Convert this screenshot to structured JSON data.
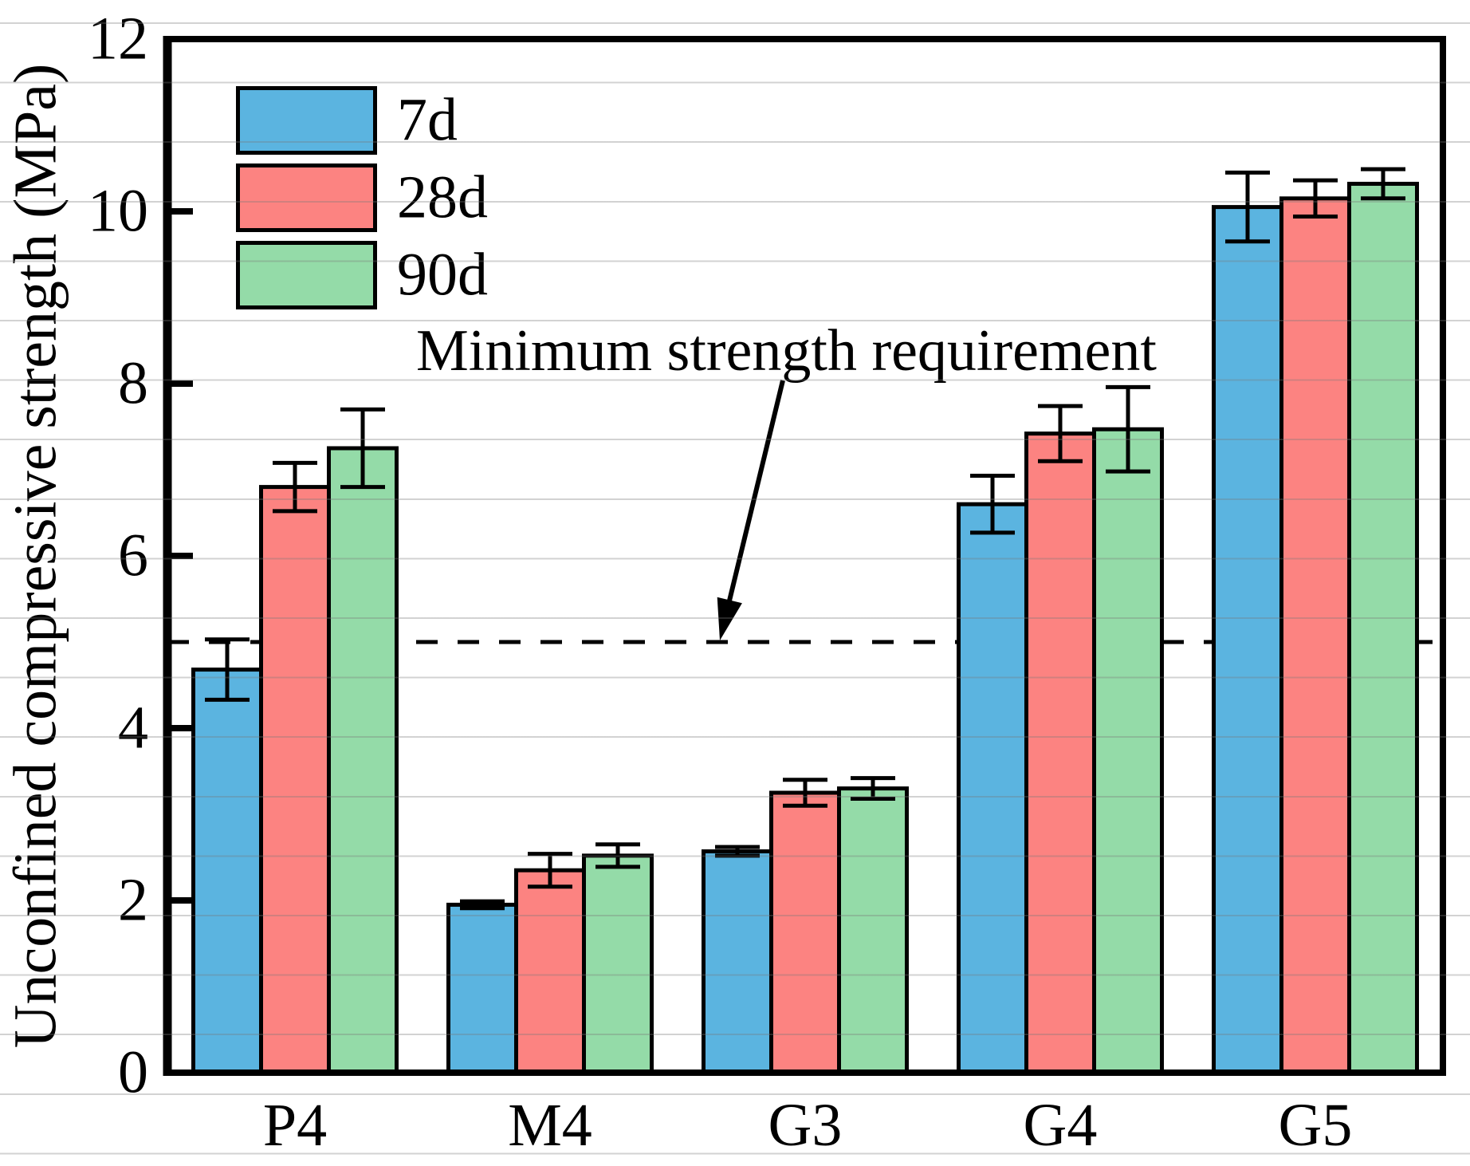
{
  "chart_data": {
    "type": "bar",
    "title": "",
    "categories": [
      "P4",
      "M4",
      "G3",
      "G4",
      "G5"
    ],
    "series": [
      {
        "name": "7d",
        "color": "#5BB4E0",
        "values": [
          4.68,
          1.95,
          2.57,
          6.6,
          10.05
        ],
        "errors": [
          0.35,
          0.04,
          0.05,
          0.33,
          0.4
        ]
      },
      {
        "name": "28d",
        "color": "#FC8381",
        "values": [
          6.8,
          2.35,
          3.25,
          7.42,
          10.15
        ],
        "errors": [
          0.28,
          0.19,
          0.15,
          0.32,
          0.21
        ]
      },
      {
        "name": "90d",
        "color": "#94DBA8",
        "values": [
          7.25,
          2.52,
          3.3,
          7.47,
          10.32
        ],
        "errors": [
          0.45,
          0.13,
          0.12,
          0.49,
          0.17
        ]
      }
    ],
    "xlabel": "",
    "ylabel": "Unconfined compressive strength (MPa)",
    "ylim": [
      0,
      12
    ],
    "yticks": [
      0,
      2,
      4,
      6,
      8,
      10,
      12
    ],
    "grid": "faint horizontal lines across entire image",
    "legend_position": "upper-left inside plot, no frame",
    "reference_line": {
      "value": 5,
      "style": "dashed",
      "label": "Minimum strength requirement"
    }
  },
  "colors": {
    "bar_7d": "#5BB4E0",
    "bar_28d": "#FC8381",
    "bar_90d": "#94DBA8",
    "axis": "#000000",
    "background_grid": "#c9c9c9"
  }
}
